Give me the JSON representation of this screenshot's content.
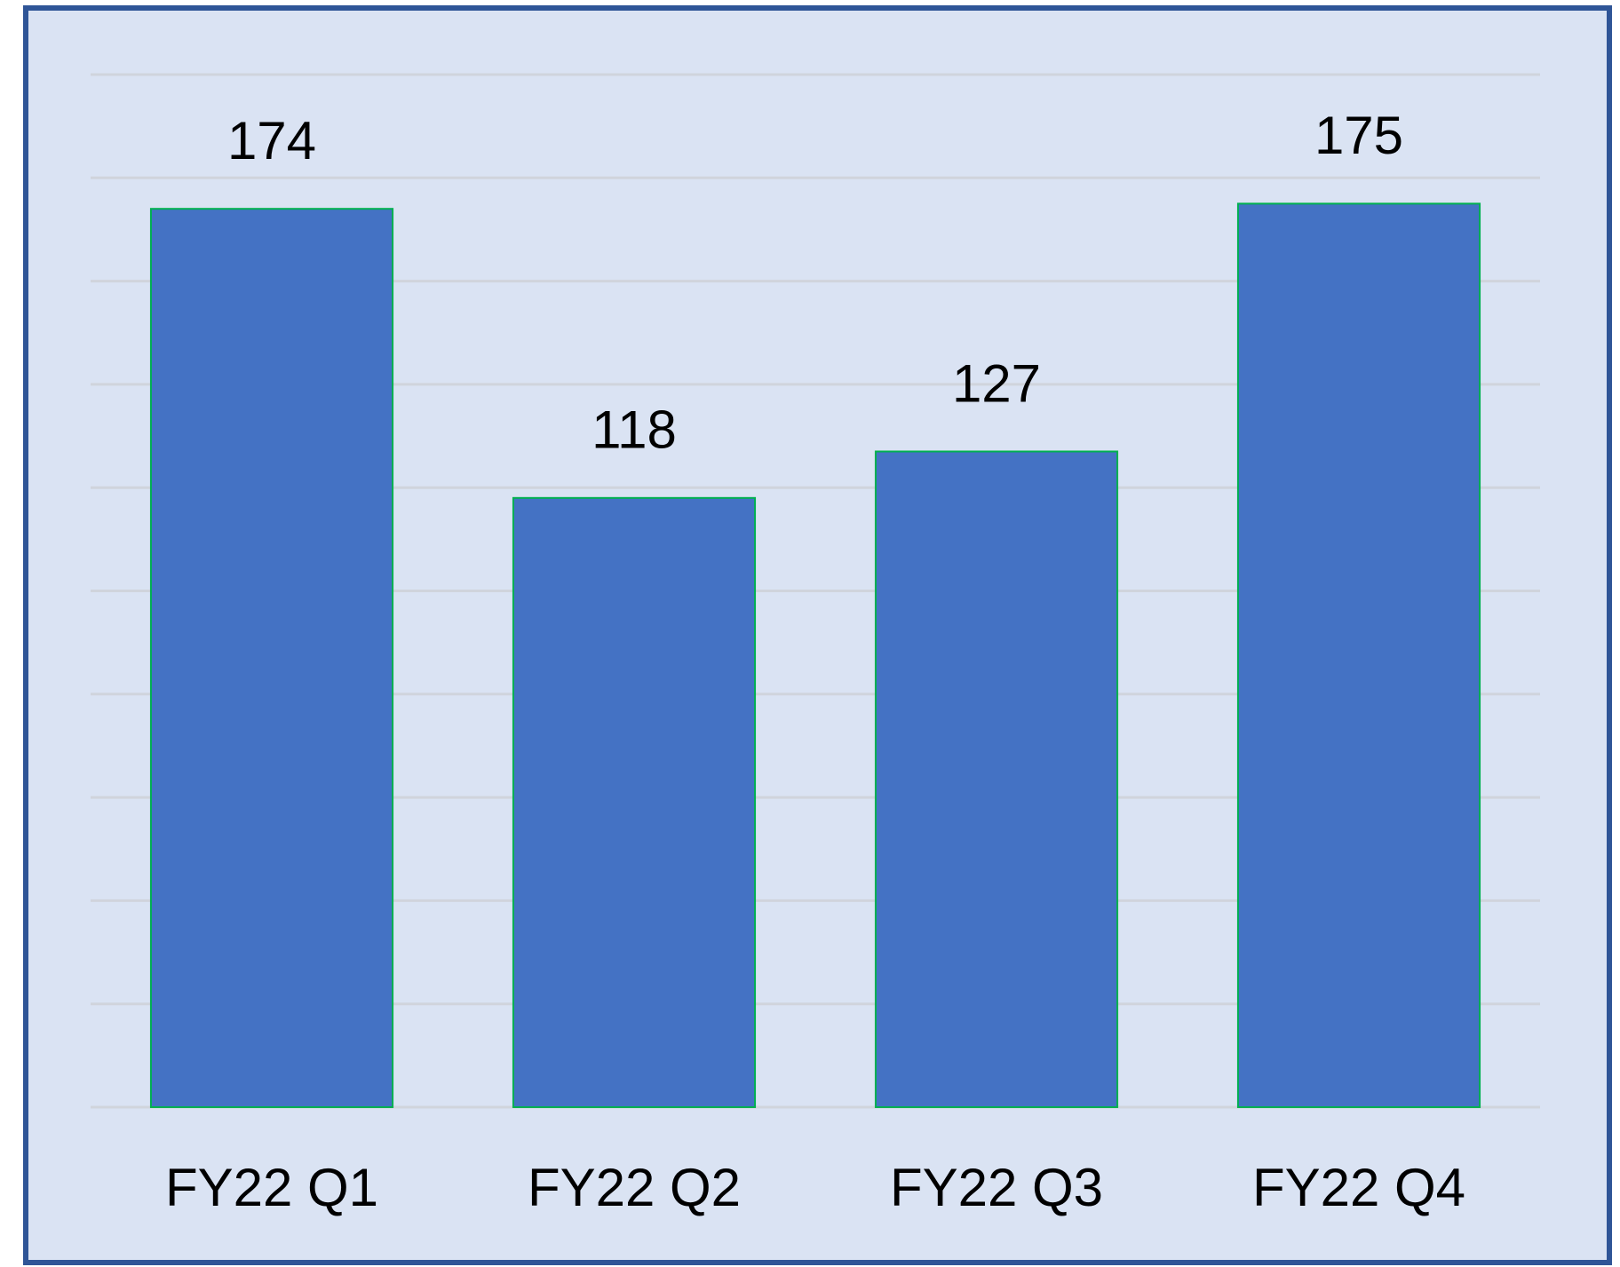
{
  "chart_data": {
    "type": "bar",
    "categories": [
      "FY22 Q1",
      "FY22 Q2",
      "FY22 Q3",
      "FY22 Q4"
    ],
    "values": [
      174,
      118,
      127,
      175
    ],
    "color": "#4472c4",
    "edge_color": "#00b050",
    "ylim": [
      0,
      200
    ],
    "yticks": [
      0,
      20,
      40,
      60,
      80,
      100,
      120,
      140,
      160,
      180,
      200
    ],
    "grid": true
  }
}
